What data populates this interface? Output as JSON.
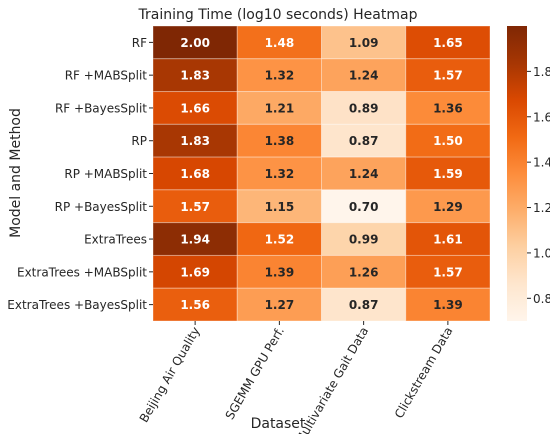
{
  "chart_data": {
    "type": "heatmap",
    "title": "Training Time (log10 seconds) Heatmap",
    "xlabel": "Dataset",
    "ylabel": "Model and Method",
    "columns": [
      "Beijing Air Quality",
      "SGEMM GPU Perf.",
      "Multivariate Gait Data",
      "Clickstream Data"
    ],
    "rows": [
      "RF",
      "RF +MABSplit",
      "RF +BayesSplit",
      "RP",
      "RP +MABSplit",
      "RP +BayesSplit",
      "ExtraTrees",
      "ExtraTrees +MABSplit",
      "ExtraTrees +BayesSplit"
    ],
    "values": [
      [
        2.0,
        1.48,
        1.09,
        1.65
      ],
      [
        1.83,
        1.32,
        1.24,
        1.57
      ],
      [
        1.66,
        1.21,
        0.89,
        1.36
      ],
      [
        1.83,
        1.38,
        0.87,
        1.5
      ],
      [
        1.68,
        1.32,
        1.24,
        1.59
      ],
      [
        1.57,
        1.15,
        0.7,
        1.29
      ],
      [
        1.94,
        1.52,
        0.99,
        1.61
      ],
      [
        1.69,
        1.39,
        1.26,
        1.57
      ],
      [
        1.56,
        1.27,
        0.87,
        1.39
      ]
    ],
    "colorbar": {
      "colormap": "Oranges",
      "vmin": 0.7,
      "vmax": 2.0,
      "ticks": [
        0.8,
        1.0,
        1.2,
        1.4,
        1.6,
        1.8
      ]
    },
    "grid": true
  }
}
